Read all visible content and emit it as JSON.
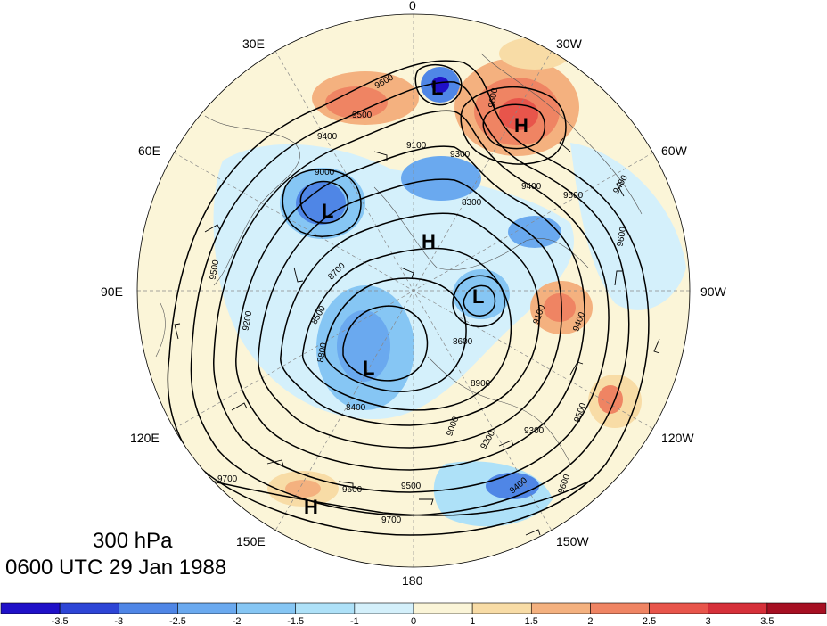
{
  "caption": {
    "level": "300 hPa",
    "time": "0600 UTC 29 Jan 1988"
  },
  "longitude_labels": [
    "0",
    "30W",
    "60W",
    "90W",
    "120W",
    "150W",
    "180",
    "150E",
    "120E",
    "90E",
    "60E",
    "30E"
  ],
  "height_contours_m": [
    8300,
    8400,
    8500,
    8600,
    8700,
    8800,
    8900,
    9000,
    9100,
    9200,
    9300,
    9400,
    9500,
    9600,
    9700
  ],
  "contour_labels": [
    "9600",
    "9500",
    "9400",
    "9300",
    "9100",
    "9000",
    "8900",
    "8800",
    "8700",
    "8600",
    "8500",
    "8400",
    "8300",
    "9200",
    "9700"
  ],
  "pressure_centers": [
    {
      "type": "L",
      "label": "L"
    },
    {
      "type": "H",
      "label": "H"
    },
    {
      "type": "L",
      "label": "L"
    },
    {
      "type": "H",
      "label": "H"
    },
    {
      "type": "L",
      "label": "L"
    },
    {
      "type": "L",
      "label": "L"
    },
    {
      "type": "H",
      "label": "H"
    }
  ],
  "colorbar": {
    "ticks": [
      "-3.5",
      "-3",
      "-2.5",
      "-2",
      "-1.5",
      "-1",
      "0",
      "1",
      "1.5",
      "2",
      "2.5",
      "3",
      "3.5"
    ],
    "colors": [
      "#1f10c8",
      "#2d45d6",
      "#4f86e6",
      "#6aa9ef",
      "#86c6f4",
      "#aee1f8",
      "#d4f0fb",
      "#fbf5d8",
      "#f8dca6",
      "#f4b17f",
      "#ef8463",
      "#e8554b",
      "#d6303a",
      "#a60f22"
    ]
  },
  "colors": {
    "contour": "#000000",
    "coast": "#555555",
    "grid": "#888888",
    "background": "#ffffff"
  }
}
